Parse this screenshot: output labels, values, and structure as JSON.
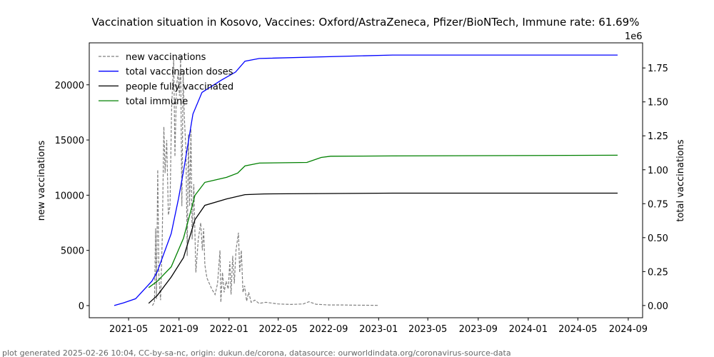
{
  "chart_data": {
    "type": "line",
    "title": "Vaccination situation in Kosovo, Vaccines: Oxford/AstraZeneca, Pfizer/BioNTech, Immune rate: 61.69%",
    "ylabel_left": "new vaccinations",
    "ylabel_right": "total vaccinations",
    "right_axis_offset_label": "1e6",
    "xlim": [
      "2021-01-25",
      "2024-10-06"
    ],
    "ylim_left": [
      -1100,
      23800
    ],
    "ylim_right": [
      -90000,
      1935000
    ],
    "x_ticks": [
      "2021-05",
      "2021-09",
      "2022-01",
      "2022-05",
      "2022-09",
      "2023-01",
      "2023-05",
      "2023-09",
      "2024-01",
      "2024-05",
      "2024-09"
    ],
    "y_ticks_left": [
      0,
      5000,
      10000,
      15000,
      20000
    ],
    "y_ticks_right": [
      "0.00",
      "0.25",
      "0.50",
      "0.75",
      "1.00",
      "1.25",
      "1.50",
      "1.75"
    ],
    "grid": false,
    "legend_position": "top-left",
    "series": [
      {
        "name": "new vaccinations",
        "axis": "left",
        "color": "#808080",
        "style": "dashed",
        "points": [
          [
            "2021-06-28",
            0
          ],
          [
            "2021-07-03",
            300
          ],
          [
            "2021-07-06",
            7000
          ],
          [
            "2021-07-08",
            600
          ],
          [
            "2021-07-11",
            12300
          ],
          [
            "2021-07-14",
            2500
          ],
          [
            "2021-07-18",
            500
          ],
          [
            "2021-07-22",
            6000
          ],
          [
            "2021-07-26",
            16200
          ],
          [
            "2021-07-29",
            12000
          ],
          [
            "2021-08-02",
            15000
          ],
          [
            "2021-08-06",
            8200
          ],
          [
            "2021-08-10",
            9000
          ],
          [
            "2021-08-14",
            18000
          ],
          [
            "2021-08-19",
            22300
          ],
          [
            "2021-08-22",
            13500
          ],
          [
            "2021-08-26",
            20000
          ],
          [
            "2021-08-30",
            21000
          ],
          [
            "2021-09-02",
            19000
          ],
          [
            "2021-09-05",
            22500
          ],
          [
            "2021-09-08",
            9000
          ],
          [
            "2021-09-11",
            21000
          ],
          [
            "2021-09-14",
            17000
          ],
          [
            "2021-09-18",
            14000
          ],
          [
            "2021-09-21",
            4500
          ],
          [
            "2021-09-24",
            15500
          ],
          [
            "2021-09-27",
            9000
          ],
          [
            "2021-09-30",
            16000
          ],
          [
            "2021-10-03",
            6000
          ],
          [
            "2021-10-07",
            11000
          ],
          [
            "2021-10-12",
            3000
          ],
          [
            "2021-10-18",
            6000
          ],
          [
            "2021-10-24",
            7500
          ],
          [
            "2021-10-28",
            5000
          ],
          [
            "2021-10-31",
            7000
          ],
          [
            "2021-11-03",
            3700
          ],
          [
            "2021-11-08",
            2500
          ],
          [
            "2021-11-14",
            2000
          ],
          [
            "2021-11-20",
            1500
          ],
          [
            "2021-11-28",
            1000
          ],
          [
            "2021-12-04",
            2000
          ],
          [
            "2021-12-10",
            5000
          ],
          [
            "2021-12-12",
            300
          ],
          [
            "2021-12-16",
            3000
          ],
          [
            "2021-12-20",
            1200
          ],
          [
            "2021-12-25",
            2200
          ],
          [
            "2021-12-30",
            1500
          ],
          [
            "2022-01-03",
            4000
          ],
          [
            "2022-01-06",
            1000
          ],
          [
            "2022-01-10",
            4500
          ],
          [
            "2022-01-14",
            2000
          ],
          [
            "2022-01-18",
            5000
          ],
          [
            "2022-01-24",
            6600
          ],
          [
            "2022-01-27",
            3000
          ],
          [
            "2022-01-31",
            5000
          ],
          [
            "2022-02-04",
            1200
          ],
          [
            "2022-02-08",
            1800
          ],
          [
            "2022-02-13",
            400
          ],
          [
            "2022-02-18",
            1200
          ],
          [
            "2022-02-24",
            300
          ],
          [
            "2022-03-05",
            500
          ],
          [
            "2022-03-15",
            200
          ],
          [
            "2022-04-01",
            300
          ],
          [
            "2022-05-01",
            150
          ],
          [
            "2022-06-01",
            100
          ],
          [
            "2022-07-01",
            150
          ],
          [
            "2022-07-15",
            350
          ],
          [
            "2022-08-01",
            120
          ],
          [
            "2022-09-01",
            60
          ],
          [
            "2022-10-01",
            60
          ],
          [
            "2022-11-01",
            40
          ],
          [
            "2022-12-01",
            30
          ],
          [
            "2023-01-01",
            20
          ]
        ]
      },
      {
        "name": "total vaccination doses",
        "axis": "right",
        "color": "#0000ff",
        "style": "solid",
        "points": [
          [
            "2021-03-27",
            0
          ],
          [
            "2021-04-19",
            20000
          ],
          [
            "2021-05-18",
            50000
          ],
          [
            "2021-06-27",
            180000
          ],
          [
            "2021-07-10",
            250000
          ],
          [
            "2021-08-13",
            530000
          ],
          [
            "2021-08-31",
            790000
          ],
          [
            "2021-09-12",
            990000
          ],
          [
            "2021-10-05",
            1410000
          ],
          [
            "2021-10-27",
            1570000
          ],
          [
            "2021-12-13",
            1660000
          ],
          [
            "2022-01-17",
            1720000
          ],
          [
            "2022-02-09",
            1800000
          ],
          [
            "2022-03-16",
            1820000
          ],
          [
            "2023-02-04",
            1845000
          ],
          [
            "2024-08-06",
            1845000
          ]
        ]
      },
      {
        "name": "people fully vaccinated",
        "axis": "right",
        "color": "#000000",
        "style": "solid",
        "points": [
          [
            "2021-06-19",
            16000
          ],
          [
            "2021-07-10",
            74000
          ],
          [
            "2021-08-13",
            210000
          ],
          [
            "2021-09-12",
            353000
          ],
          [
            "2021-10-10",
            633000
          ],
          [
            "2021-11-03",
            738000
          ],
          [
            "2021-12-26",
            785000
          ],
          [
            "2022-02-09",
            817000
          ],
          [
            "2022-03-28",
            822000
          ],
          [
            "2023-02-04",
            828000
          ],
          [
            "2024-08-06",
            828000
          ]
        ]
      },
      {
        "name": "total immune",
        "axis": "right",
        "color": "#008000",
        "style": "solid",
        "points": [
          [
            "2021-06-19",
            132000
          ],
          [
            "2021-07-10",
            179000
          ],
          [
            "2021-08-13",
            285000
          ],
          [
            "2021-09-12",
            496000
          ],
          [
            "2021-10-10",
            812000
          ],
          [
            "2021-11-03",
            907000
          ],
          [
            "2021-12-26",
            944000
          ],
          [
            "2022-01-22",
            975000
          ],
          [
            "2022-02-09",
            1028000
          ],
          [
            "2022-03-16",
            1049000
          ],
          [
            "2022-07-10",
            1054000
          ],
          [
            "2022-08-14",
            1091000
          ],
          [
            "2022-09-06",
            1100000
          ],
          [
            "2023-02-04",
            1102000
          ],
          [
            "2024-08-06",
            1107000
          ]
        ]
      }
    ]
  },
  "footer": "plot generated 2025-02-26 10:04, CC-by-sa-nc, origin: dukun.de/corona, datasource: ourworldindata.org/coronavirus-source-data"
}
